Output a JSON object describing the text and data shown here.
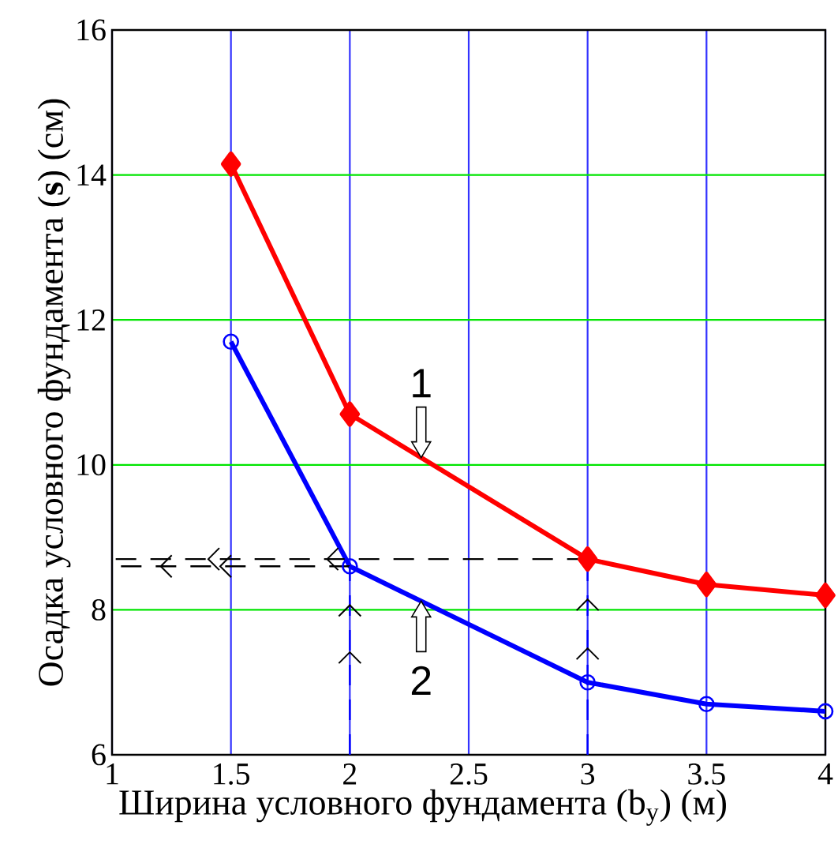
{
  "chart_data": {
    "type": "line",
    "xlabel": "Ширина условного фундамента (b$_{у}$) (м)",
    "ylabel": "Осадка условного фундамента (**s**) (см)",
    "xlim": [
      1,
      4
    ],
    "xticks": [
      1,
      1.5,
      2,
      2.5,
      3,
      3.5,
      4
    ],
    "ylim": [
      6,
      16
    ],
    "yticks": [
      6,
      8,
      10,
      12,
      14,
      16
    ],
    "grid": true,
    "series": [
      {
        "name": "1",
        "color": "#ff0000",
        "x": [
          1.5,
          2,
          3,
          3.5,
          4
        ],
        "values": [
          14.15,
          10.7,
          8.7,
          8.35,
          8.2
        ],
        "marker": "diamond",
        "line_style": "solid"
      },
      {
        "name": "2",
        "color": "#0000ff",
        "x": [
          1.5,
          2,
          3,
          3.5,
          4
        ],
        "values": [
          11.7,
          8.6,
          7.0,
          6.7,
          6.6
        ],
        "marker": "circle",
        "line_style": "solid"
      },
      {
        "color": "#000000",
        "x": [
          3,
          1
        ],
        "values": [
          8.7,
          8.7
        ],
        "marker": "none",
        "line_style": "dashed"
      },
      {
        "color": "#000000",
        "x": [
          2,
          1
        ],
        "values": [
          8.6,
          8.6
        ],
        "marker": "none",
        "line_style": "dashed"
      },
      {
        "color": "#0000ff",
        "x": [
          2,
          2
        ],
        "values": [
          6,
          8.6
        ],
        "marker": "none",
        "line_style": "dashed"
      },
      {
        "color": "#0000ff",
        "x": [
          3,
          3
        ],
        "values": [
          6,
          8.7
        ],
        "marker": "none",
        "line_style": "dashed"
      }
    ]
  }
}
